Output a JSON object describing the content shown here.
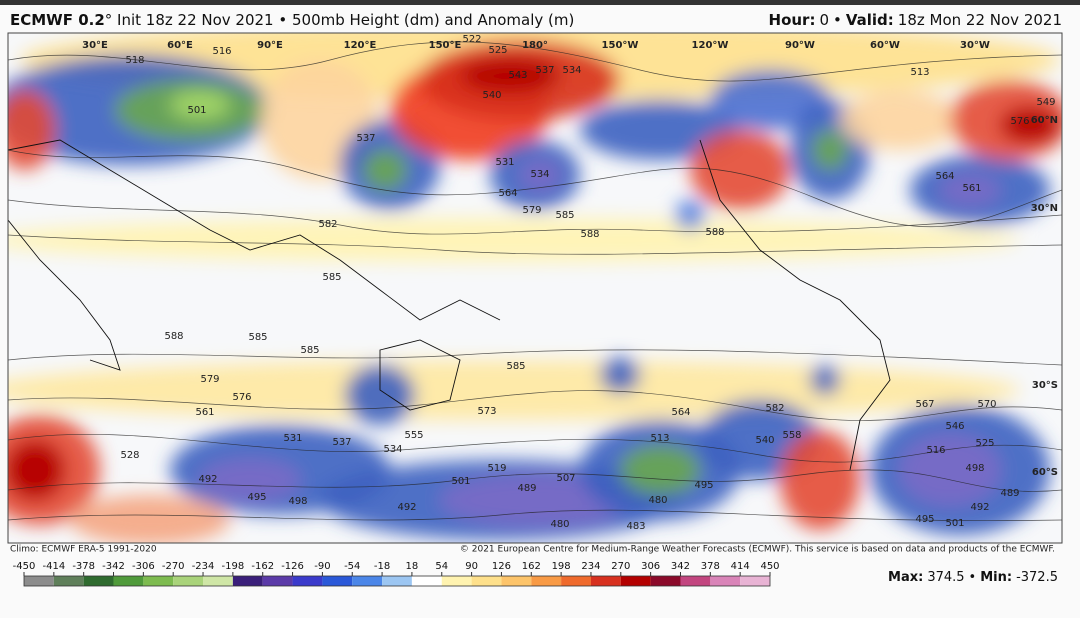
{
  "header": {
    "model": "ECMWF 0.2",
    "title": "° Init 18z 22 Nov 2021 • 500mb Height (dm) and Anomaly (m)",
    "hour_label": "Hour:",
    "hour": 0,
    "separator": "•",
    "valid_label": "Valid:",
    "valid": "18z Mon 22 Nov 2021"
  },
  "longitude_labels": [
    "30°E",
    "60°E",
    "90°E",
    "120°E",
    "150°E",
    "180°",
    "150°W",
    "120°W",
    "90°W",
    "60°W",
    "30°W"
  ],
  "latitude_labels": [
    "60°N",
    "30°N",
    "30°S",
    "60°S"
  ],
  "contour_labels": [
    516,
    525,
    522,
    518,
    543,
    537,
    534,
    540,
    501,
    513,
    549,
    576,
    582,
    585,
    588,
    588,
    585,
    579,
    564,
    531,
    534,
    537,
    564,
    561,
    585,
    585,
    588,
    585,
    579,
    576,
    561,
    531,
    537,
    534,
    555,
    573,
    564,
    582,
    540,
    558,
    567,
    570,
    546,
    525,
    516,
    498,
    489,
    492,
    495,
    501,
    528,
    492,
    495,
    498,
    501,
    489,
    507,
    519,
    513,
    480,
    495,
    492,
    480,
    483
  ],
  "footer": {
    "climo": "Climo: ECMWF ERA-5 1991-2020",
    "copyright": "© 2021 European Centre for Medium-Range Weather Forecasts (ECMWF). This service is based on data and products of the ECMWF."
  },
  "colorbar": {
    "ticks": [
      -450,
      -414,
      -378,
      -342,
      -306,
      -270,
      -234,
      -198,
      -162,
      -126,
      -90,
      -54,
      -18,
      18,
      54,
      90,
      126,
      162,
      198,
      234,
      270,
      306,
      342,
      378,
      414,
      450
    ],
    "colors": [
      "#8c8c8c",
      "#5f7f5a",
      "#2f6b2f",
      "#4f9a3a",
      "#7dbb4f",
      "#a9d37a",
      "#cfe6a6",
      "#3a1f7a",
      "#5b3aa8",
      "#3a3acb",
      "#2a58d8",
      "#4b86e8",
      "#9cc6f2",
      "#ffffff",
      "#fff3b0",
      "#fee08b",
      "#fdc46a",
      "#f89a45",
      "#ef6a2c",
      "#d7301f",
      "#b30000",
      "#8b0a2a",
      "#c2457f",
      "#d984b8",
      "#e8b3d4"
    ]
  },
  "stats": {
    "max_label": "Max:",
    "max": 374.5,
    "separator": "•",
    "min_label": "Min:",
    "min": -372.5
  }
}
